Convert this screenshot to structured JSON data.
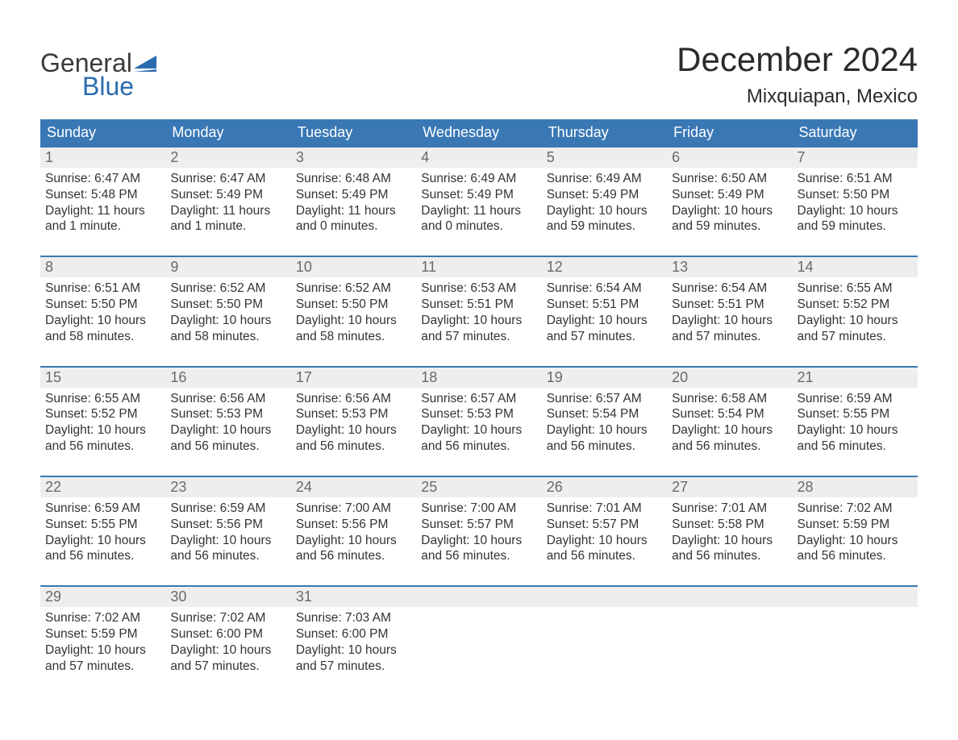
{
  "logo": {
    "word1": "General",
    "word2": "Blue",
    "flag_color": "#2a6bb0",
    "word1_color": "#3a3a3a"
  },
  "title": "December 2024",
  "location": "Mixquiapan, Mexico",
  "colors": {
    "header_bg": "#3a78b5",
    "header_text": "#ffffff",
    "week_border": "#3a78b5",
    "daynum_bg": "#eeeeee",
    "daynum_text": "#6a6a6a",
    "body_text": "#333333",
    "page_bg": "#ffffff"
  },
  "day_labels": [
    "Sunday",
    "Monday",
    "Tuesday",
    "Wednesday",
    "Thursday",
    "Friday",
    "Saturday"
  ],
  "weeks": [
    [
      {
        "n": "1",
        "sunrise": "6:47 AM",
        "sunset": "5:48 PM",
        "daylight": "11 hours and 1 minute."
      },
      {
        "n": "2",
        "sunrise": "6:47 AM",
        "sunset": "5:49 PM",
        "daylight": "11 hours and 1 minute."
      },
      {
        "n": "3",
        "sunrise": "6:48 AM",
        "sunset": "5:49 PM",
        "daylight": "11 hours and 0 minutes."
      },
      {
        "n": "4",
        "sunrise": "6:49 AM",
        "sunset": "5:49 PM",
        "daylight": "11 hours and 0 minutes."
      },
      {
        "n": "5",
        "sunrise": "6:49 AM",
        "sunset": "5:49 PM",
        "daylight": "10 hours and 59 minutes."
      },
      {
        "n": "6",
        "sunrise": "6:50 AM",
        "sunset": "5:49 PM",
        "daylight": "10 hours and 59 minutes."
      },
      {
        "n": "7",
        "sunrise": "6:51 AM",
        "sunset": "5:50 PM",
        "daylight": "10 hours and 59 minutes."
      }
    ],
    [
      {
        "n": "8",
        "sunrise": "6:51 AM",
        "sunset": "5:50 PM",
        "daylight": "10 hours and 58 minutes."
      },
      {
        "n": "9",
        "sunrise": "6:52 AM",
        "sunset": "5:50 PM",
        "daylight": "10 hours and 58 minutes."
      },
      {
        "n": "10",
        "sunrise": "6:52 AM",
        "sunset": "5:50 PM",
        "daylight": "10 hours and 58 minutes."
      },
      {
        "n": "11",
        "sunrise": "6:53 AM",
        "sunset": "5:51 PM",
        "daylight": "10 hours and 57 minutes."
      },
      {
        "n": "12",
        "sunrise": "6:54 AM",
        "sunset": "5:51 PM",
        "daylight": "10 hours and 57 minutes."
      },
      {
        "n": "13",
        "sunrise": "6:54 AM",
        "sunset": "5:51 PM",
        "daylight": "10 hours and 57 minutes."
      },
      {
        "n": "14",
        "sunrise": "6:55 AM",
        "sunset": "5:52 PM",
        "daylight": "10 hours and 57 minutes."
      }
    ],
    [
      {
        "n": "15",
        "sunrise": "6:55 AM",
        "sunset": "5:52 PM",
        "daylight": "10 hours and 56 minutes."
      },
      {
        "n": "16",
        "sunrise": "6:56 AM",
        "sunset": "5:53 PM",
        "daylight": "10 hours and 56 minutes."
      },
      {
        "n": "17",
        "sunrise": "6:56 AM",
        "sunset": "5:53 PM",
        "daylight": "10 hours and 56 minutes."
      },
      {
        "n": "18",
        "sunrise": "6:57 AM",
        "sunset": "5:53 PM",
        "daylight": "10 hours and 56 minutes."
      },
      {
        "n": "19",
        "sunrise": "6:57 AM",
        "sunset": "5:54 PM",
        "daylight": "10 hours and 56 minutes."
      },
      {
        "n": "20",
        "sunrise": "6:58 AM",
        "sunset": "5:54 PM",
        "daylight": "10 hours and 56 minutes."
      },
      {
        "n": "21",
        "sunrise": "6:59 AM",
        "sunset": "5:55 PM",
        "daylight": "10 hours and 56 minutes."
      }
    ],
    [
      {
        "n": "22",
        "sunrise": "6:59 AM",
        "sunset": "5:55 PM",
        "daylight": "10 hours and 56 minutes."
      },
      {
        "n": "23",
        "sunrise": "6:59 AM",
        "sunset": "5:56 PM",
        "daylight": "10 hours and 56 minutes."
      },
      {
        "n": "24",
        "sunrise": "7:00 AM",
        "sunset": "5:56 PM",
        "daylight": "10 hours and 56 minutes."
      },
      {
        "n": "25",
        "sunrise": "7:00 AM",
        "sunset": "5:57 PM",
        "daylight": "10 hours and 56 minutes."
      },
      {
        "n": "26",
        "sunrise": "7:01 AM",
        "sunset": "5:57 PM",
        "daylight": "10 hours and 56 minutes."
      },
      {
        "n": "27",
        "sunrise": "7:01 AM",
        "sunset": "5:58 PM",
        "daylight": "10 hours and 56 minutes."
      },
      {
        "n": "28",
        "sunrise": "7:02 AM",
        "sunset": "5:59 PM",
        "daylight": "10 hours and 56 minutes."
      }
    ],
    [
      {
        "n": "29",
        "sunrise": "7:02 AM",
        "sunset": "5:59 PM",
        "daylight": "10 hours and 57 minutes."
      },
      {
        "n": "30",
        "sunrise": "7:02 AM",
        "sunset": "6:00 PM",
        "daylight": "10 hours and 57 minutes."
      },
      {
        "n": "31",
        "sunrise": "7:03 AM",
        "sunset": "6:00 PM",
        "daylight": "10 hours and 57 minutes."
      },
      null,
      null,
      null,
      null
    ]
  ],
  "labels": {
    "sunrise": "Sunrise:",
    "sunset": "Sunset:",
    "daylight": "Daylight:"
  },
  "typography": {
    "title_fontsize": 42,
    "location_fontsize": 24,
    "day_header_fontsize": 18,
    "daynum_fontsize": 18,
    "body_fontsize": 15.5
  }
}
